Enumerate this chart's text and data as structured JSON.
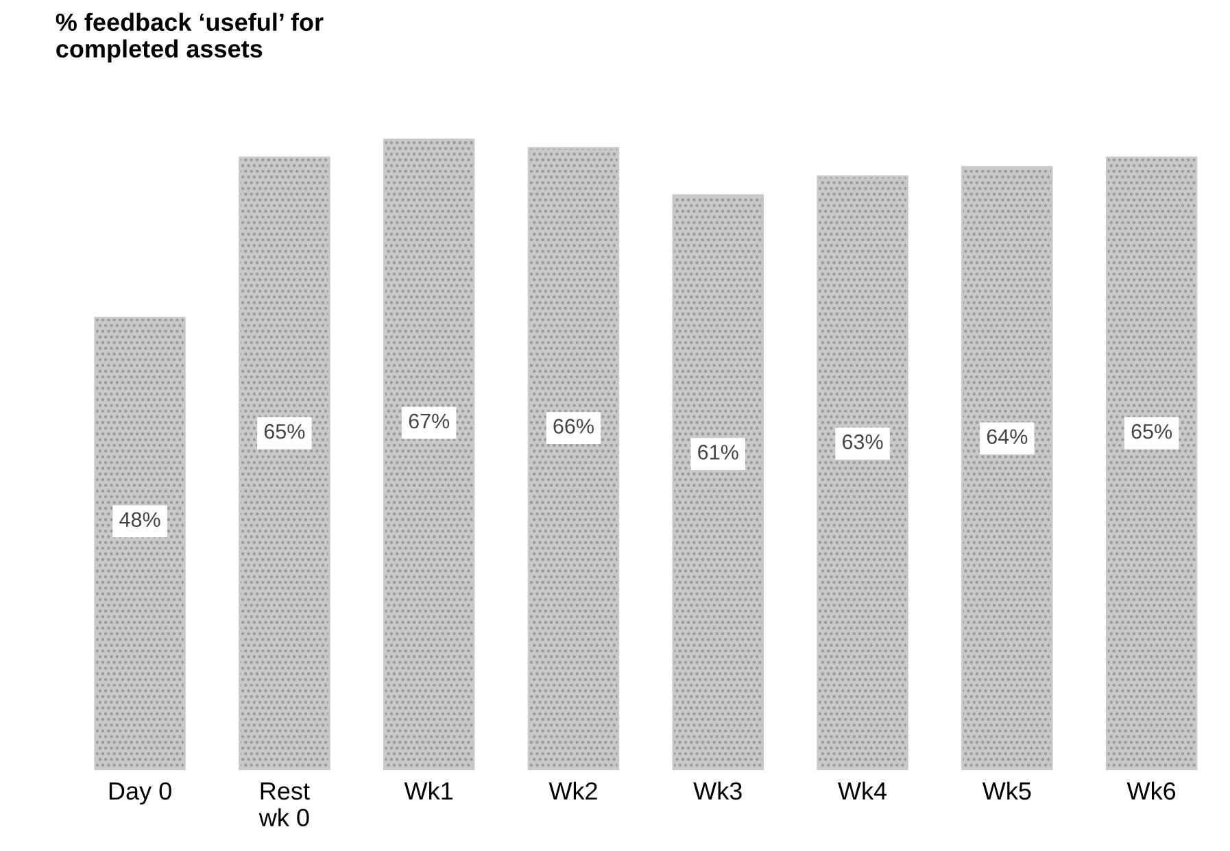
{
  "chart_data": {
    "type": "bar",
    "title": "% feedback ‘useful’ for\ncompleted assets",
    "categories": [
      "Day 0",
      "Rest\nwk 0",
      "Wk1",
      "Wk2",
      "Wk3",
      "Wk4",
      "Wk5",
      "Wk6"
    ],
    "values": [
      48,
      65,
      67,
      66,
      61,
      63,
      64,
      65
    ],
    "value_labels": [
      "48%",
      "65%",
      "67%",
      "66%",
      "61%",
      "63%",
      "64%",
      "65%"
    ],
    "color": "#c9c9c9",
    "grid": false,
    "legend": false
  }
}
